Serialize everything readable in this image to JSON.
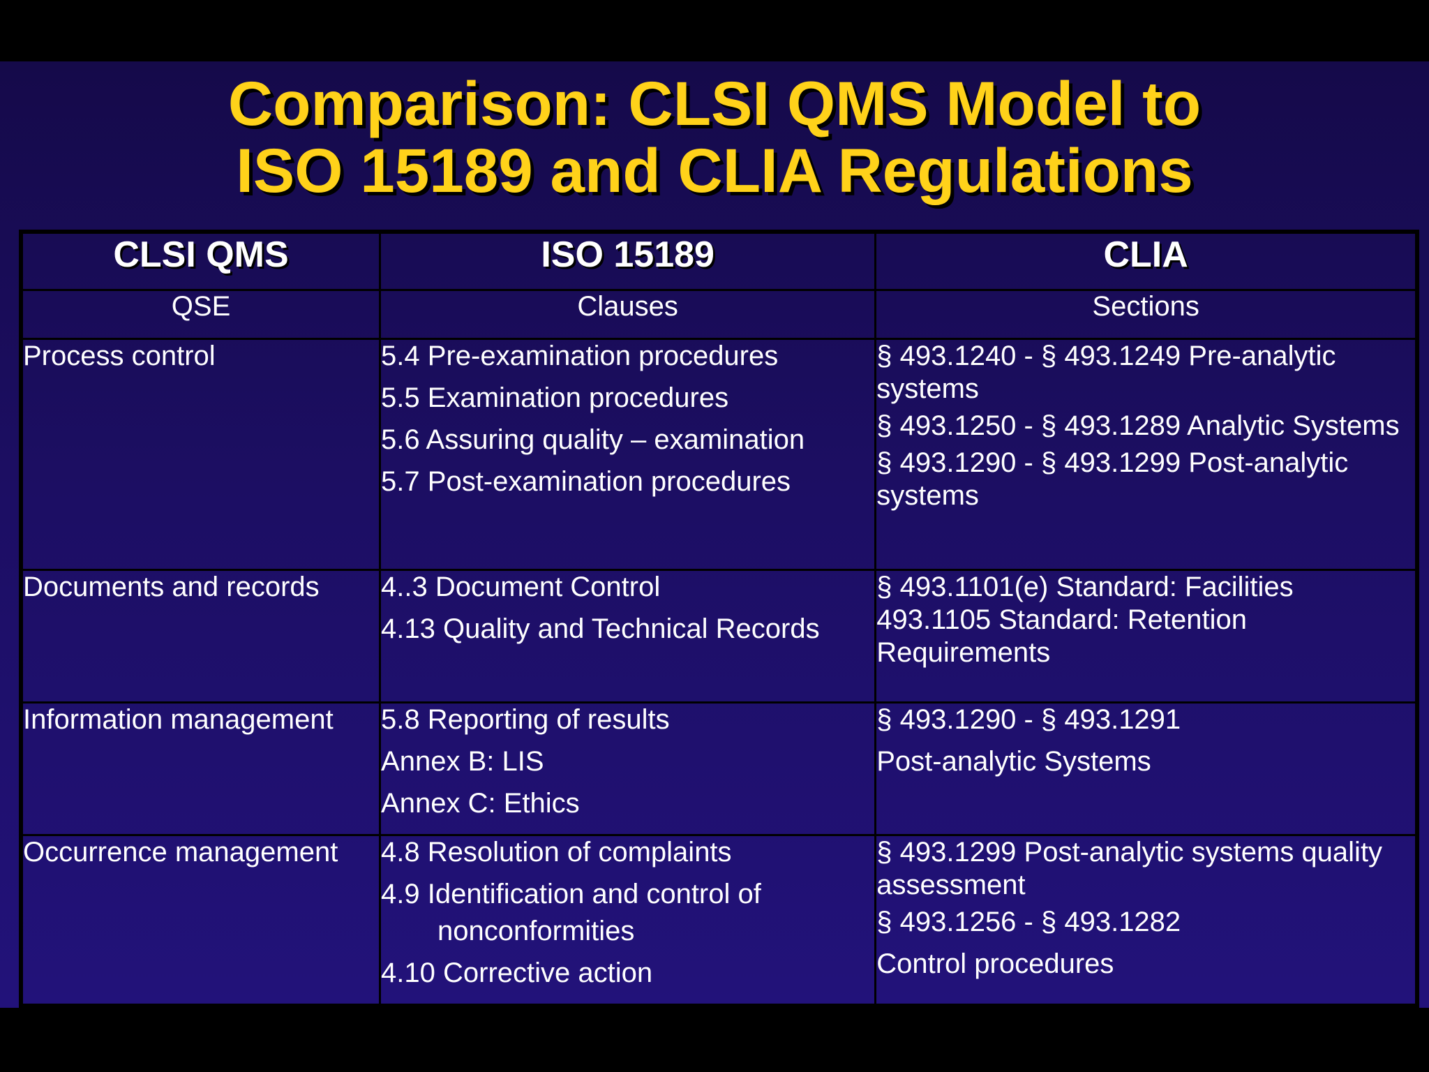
{
  "title": {
    "line1": "Comparison: CLSI QMS Model to",
    "line2": "ISO 15189 and CLIA Regulations"
  },
  "table": {
    "headers": [
      "CLSI QMS",
      "ISO 15189",
      "CLIA"
    ],
    "subheaders": [
      "QSE",
      "Clauses",
      "Sections"
    ],
    "rows": [
      {
        "qse": "Process control",
        "clauses": [
          "5.4 Pre-examination procedures",
          "5.5 Examination procedures",
          "5.6 Assuring quality – examination",
          "5.7 Post-examination procedures"
        ],
        "sections": [
          "§ 493.1240 - § 493.1249 Pre-analytic systems",
          "§ 493.1250 - § 493.1289 Analytic Systems",
          "§ 493.1290 - § 493.1299 Post-analytic systems"
        ]
      },
      {
        "qse": "Documents and records",
        "clauses": [
          "4..3  Document Control",
          "4.13  Quality and Technical Records"
        ],
        "sections": [
          "§ 493.1101(e)  Standard: Facilities",
          "493.1105  Standard: Retention Requirements"
        ]
      },
      {
        "qse": "Information management",
        "clauses": [
          "5.8  Reporting of results",
          "Annex B: LIS",
          "Annex C: Ethics"
        ],
        "sections": [
          "§ 493.1290 - § 493.1291",
          "Post-analytic Systems"
        ]
      },
      {
        "qse": "Occurrence management",
        "clauses": [
          "4.8  Resolution of complaints",
          "4.9  Identification and control of",
          "nonconformities",
          "4.10 Corrective action"
        ],
        "sections": [
          "§ 493.1299 Post-analytic systems quality assessment",
          "§ 493.1256 - § 493.1282",
          "Control procedures"
        ]
      }
    ]
  }
}
